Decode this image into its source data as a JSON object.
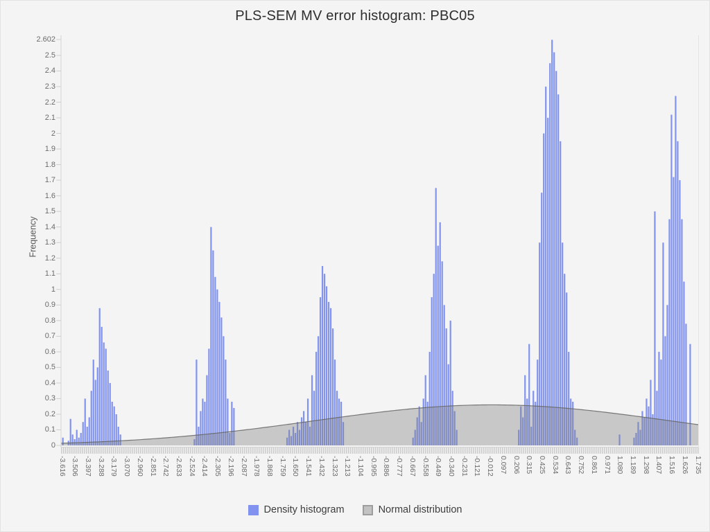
{
  "chart_data": {
    "type": "bar",
    "title": "PLS-SEM MV error histogram: PBC05",
    "ylabel": "Frequency",
    "xlabel": "",
    "ylim": [
      0,
      2.602
    ],
    "x_range": [
      -3.616,
      1.735
    ],
    "grid": false,
    "legend_position": "bottom-center",
    "y_tick_labels": [
      "0",
      "0.1",
      "0.2",
      "0.3",
      "0.4",
      "0.5",
      "0.6",
      "0.7",
      "0.8",
      "0.9",
      "1",
      "1.1",
      "1.2",
      "1.3",
      "1.4",
      "1.5",
      "1.6",
      "1.7",
      "1.8",
      "1.9",
      "2",
      "2.1",
      "2.2",
      "2.3",
      "2.4",
      "2.5",
      "2.602"
    ],
    "x_tick_labels": [
      "-3.616",
      "-3.506",
      "-3.397",
      "-3.288",
      "-3.179",
      "-3.070",
      "-2.960",
      "-2.851",
      "-2.742",
      "-2.633",
      "-2.524",
      "-2.414",
      "-2.305",
      "-2.196",
      "-2.087",
      "-1.978",
      "-1.868",
      "-1.759",
      "-1.650",
      "-1.541",
      "-1.432",
      "-1.323",
      "-1.213",
      "-1.104",
      "-0.995",
      "-0.886",
      "-0.777",
      "-0.667",
      "-0.558",
      "-0.449",
      "-0.340",
      "-0.231",
      "-0.121",
      "-0.012",
      "0.097",
      "0.206",
      "0.315",
      "0.425",
      "0.534",
      "0.643",
      "0.752",
      "0.861",
      "0.971",
      "1.080",
      "1.189",
      "1.298",
      "1.407",
      "1.516",
      "1.626",
      "1.735"
    ],
    "bar_color": "#8193ee",
    "bar_step": 0.0175,
    "axis_color": "#d4d4d4",
    "tick_color": "#cfcfcf",
    "clusters": [
      {
        "start": -3.565,
        "heights": [
          0.03,
          0.17,
          0.07,
          0.04,
          0.1,
          0.05,
          0.08,
          0.15,
          0.3,
          0.12,
          0.18,
          0.35,
          0.55,
          0.42,
          0.5,
          0.88,
          0.76,
          0.66,
          0.62,
          0.48,
          0.4,
          0.28,
          0.25,
          0.2,
          0.12,
          0.07
        ]
      },
      {
        "start": -2.505,
        "heights": [
          0.04,
          0.55,
          0.12,
          0.22,
          0.3,
          0.28,
          0.45,
          0.62,
          1.4,
          1.25,
          1.08,
          1.0,
          0.92,
          0.82,
          0.7,
          0.55,
          0.3,
          0.08,
          0.28,
          0.24
        ]
      },
      {
        "start": -1.725,
        "heights": [
          0.05,
          0.1,
          0.06,
          0.12,
          0.08,
          0.15,
          0.1,
          0.18,
          0.22,
          0.15,
          0.3,
          0.12,
          0.45,
          0.35,
          0.6,
          0.7,
          0.95,
          1.15,
          1.1,
          1.02,
          0.92,
          0.88,
          0.75,
          0.55,
          0.35,
          0.3,
          0.28,
          0.15
        ]
      },
      {
        "start": -0.665,
        "heights": [
          0.05,
          0.1,
          0.18,
          0.25,
          0.15,
          0.3,
          0.45,
          0.28,
          0.6,
          0.95,
          1.1,
          1.65,
          1.28,
          1.43,
          1.18,
          0.9,
          0.75,
          0.52,
          0.8,
          0.35,
          0.22,
          0.1
        ]
      },
      {
        "start": 0.225,
        "heights": [
          0.1,
          0.25,
          0.18,
          0.45,
          0.3,
          0.65,
          0.12,
          0.35,
          0.28,
          0.55,
          1.3,
          1.62,
          2.0,
          2.3,
          2.1,
          2.45,
          2.6,
          2.52,
          2.4,
          2.25,
          1.95,
          1.3,
          1.1,
          0.98,
          0.6,
          0.3,
          0.28,
          0.1,
          0.05
        ]
      },
      {
        "start": 1.195,
        "heights": [
          0.05,
          0.08,
          0.15,
          0.1,
          0.22,
          0.18,
          0.3,
          0.25,
          0.42,
          0.2,
          1.5,
          0.35,
          0.6,
          0.55,
          1.3,
          0.7,
          0.9,
          1.45,
          2.12,
          1.72,
          2.24,
          1.95,
          1.7,
          1.45,
          1.05,
          0.78,
          0.0,
          0.65
        ]
      }
    ],
    "extra_bars": [
      [
        -3.612,
        0.05
      ],
      [
        1.073,
        0.07
      ]
    ],
    "normal": {
      "mean": 0.0,
      "sd": 1.5,
      "peak": 0.26,
      "fill": "rgba(128,128,128,0.38)",
      "stroke": "rgba(100,100,100,0.85)"
    },
    "legend": [
      {
        "label": "Density histogram",
        "swatch_fill": "#8193ee",
        "swatch_border": "#8193ee"
      },
      {
        "label": "Normal distribution",
        "swatch_fill": "#c2c2c2",
        "swatch_border": "#9d9d9d"
      }
    ]
  }
}
